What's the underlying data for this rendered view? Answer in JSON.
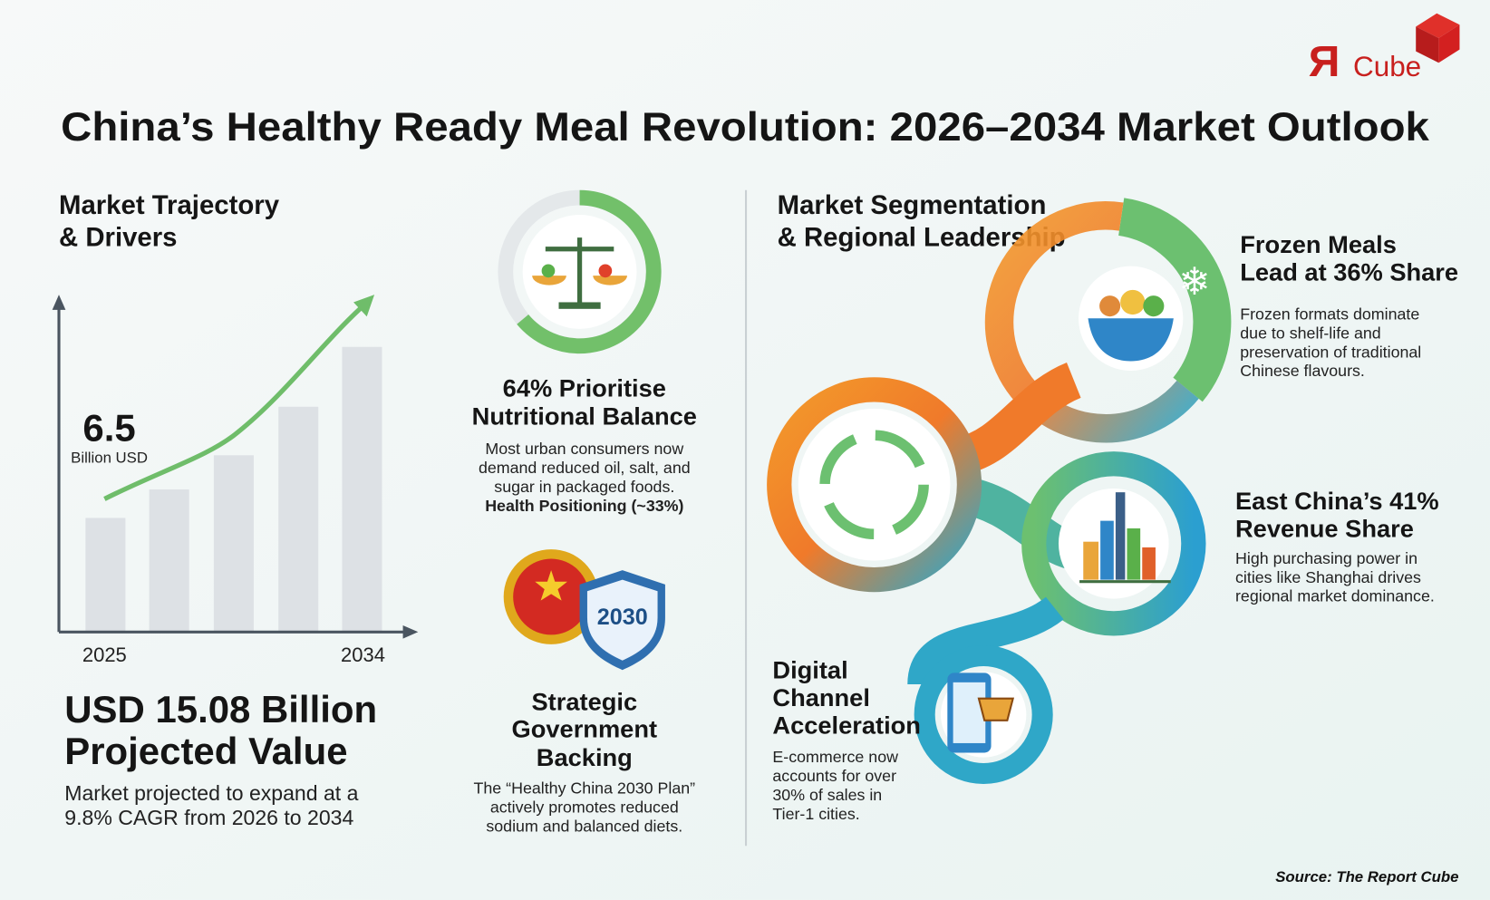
{
  "logo": {
    "mark": "Я",
    "text": "Cube"
  },
  "header": {
    "title": "China’s Healthy Ready Meal Revolution: 2026–2034 Market Outlook"
  },
  "left": {
    "heading_lines": [
      "Market Trajectory",
      "& Drivers"
    ],
    "callout": {
      "value": "6.5",
      "unit": "Billion USD"
    },
    "x_labels": [
      "2025",
      "2034"
    ],
    "headline_lines": [
      "USD 15.08 Billion",
      "Projected Value"
    ],
    "body_lines": [
      "Market projected to expand at a",
      "9.8% CAGR from 2026 to 2034"
    ]
  },
  "middle": {
    "nutrition": {
      "title_lines": [
        "64% Prioritise",
        "Nutritional Balance"
      ],
      "body_lines": [
        "Most urban consumers now",
        "demand reduced oil, salt, and",
        "sugar in packaged foods."
      ],
      "highlight": "Health Positioning (~33%)"
    },
    "government": {
      "badge": "2030",
      "title_lines": [
        "Strategic",
        "Government",
        "Backing"
      ],
      "body_lines": [
        "The “Healthy China 2030 Plan”",
        "actively promotes reduced",
        "sodium and balanced diets."
      ]
    }
  },
  "right": {
    "heading_lines": [
      "Market Segmentation",
      "& Regional Leadership"
    ],
    "segments": [
      {
        "title_lines": [
          "Frozen Meals",
          "Lead at 36% Share"
        ],
        "body_lines": [
          "Frozen formats dominate",
          "due to shelf-life and",
          "preservation of traditional",
          "Chinese flavours."
        ]
      },
      {
        "title_lines": [
          "East China’s 41%",
          "Revenue Share"
        ],
        "body_lines": [
          "High purchasing power in",
          "cities like Shanghai drives",
          "regional market dominance."
        ]
      },
      {
        "title_lines": [
          "Digital",
          "Channel",
          "Acceleration"
        ],
        "body_lines": [
          "E-commerce now",
          "accounts for over",
          "30% of sales in",
          "Tier-1 cities."
        ]
      }
    ]
  },
  "footer": {
    "source": "Source: The Report Cube"
  }
}
